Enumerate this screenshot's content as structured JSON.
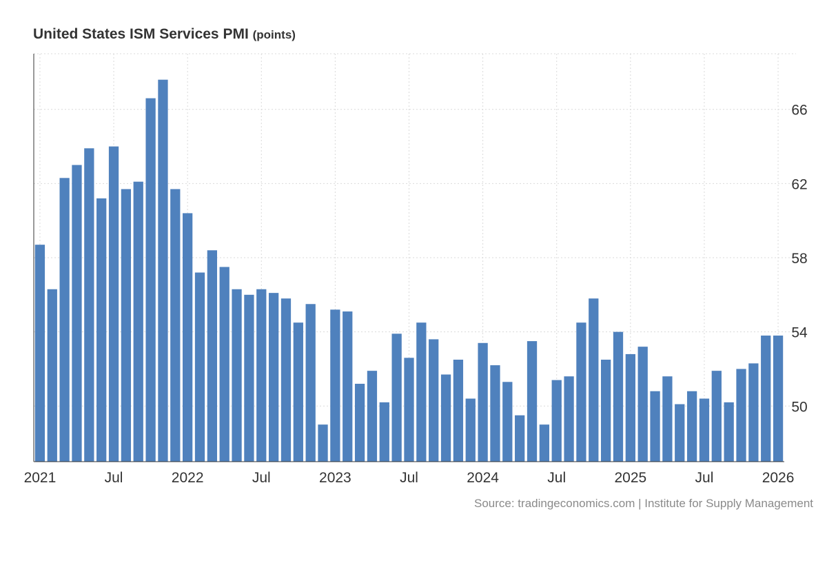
{
  "title": "United States ISM Services PMI",
  "unit": "(points)",
  "source": "Source: tradingeconomics.com | Institute for Supply Management",
  "colors": {
    "bar": "#4f81bd",
    "grid": "#d9d9d9",
    "axis": "#333333",
    "text": "#333333",
    "source": "#8a8a8a"
  },
  "chart_data": {
    "type": "bar",
    "title": "United States ISM Services PMI",
    "ylabel": "(points)",
    "ylim": [
      47,
      69
    ],
    "yticks": [
      50,
      54,
      58,
      62,
      66
    ],
    "y_axis_position": "right",
    "grid": true,
    "x_tick_labels": [
      {
        "index": 0,
        "label": "2021"
      },
      {
        "index": 6,
        "label": "Jul"
      },
      {
        "index": 12,
        "label": "2022"
      },
      {
        "index": 18,
        "label": "Jul"
      },
      {
        "index": 24,
        "label": "2023"
      },
      {
        "index": 30,
        "label": "Jul"
      },
      {
        "index": 36,
        "label": "2024"
      },
      {
        "index": 42,
        "label": "Jul"
      },
      {
        "index": 48,
        "label": "2025"
      },
      {
        "index": 54,
        "label": "Jul"
      },
      {
        "index": 60,
        "label": "2026"
      }
    ],
    "categories": [
      "Jan 2021",
      "Feb 2021",
      "Mar 2021",
      "Apr 2021",
      "May 2021",
      "Jun 2021",
      "Jul 2021",
      "Aug 2021",
      "Sep 2021",
      "Oct 2021",
      "Nov 2021",
      "Dec 2021",
      "Jan 2022",
      "Feb 2022",
      "Mar 2022",
      "Apr 2022",
      "May 2022",
      "Jun 2022",
      "Jul 2022",
      "Aug 2022",
      "Sep 2022",
      "Oct 2022",
      "Nov 2022",
      "Dec 2022",
      "Jan 2023",
      "Feb 2023",
      "Mar 2023",
      "Apr 2023",
      "May 2023",
      "Jun 2023",
      "Jul 2023",
      "Aug 2023",
      "Sep 2023",
      "Oct 2023",
      "Nov 2023",
      "Dec 2023",
      "Jan 2024",
      "Feb 2024",
      "Mar 2024",
      "Apr 2024",
      "May 2024",
      "Jun 2024",
      "Jul 2024",
      "Aug 2024",
      "Sep 2024",
      "Oct 2024",
      "Nov 2024",
      "Dec 2024",
      "Jan 2025",
      "Feb 2025",
      "Mar 2025",
      "Apr 2025",
      "May 2025",
      "Jun 2025",
      "Jul 2025",
      "Aug 2025",
      "Sep 2025",
      "Oct 2025",
      "Nov 2025",
      "Dec 2025",
      "Jan 2026"
    ],
    "values": [
      58.7,
      56.3,
      62.3,
      63.0,
      63.9,
      61.2,
      64.0,
      61.7,
      62.1,
      66.6,
      67.6,
      61.7,
      60.4,
      57.2,
      58.4,
      57.5,
      56.3,
      56.0,
      56.3,
      56.1,
      55.8,
      54.5,
      55.5,
      49.0,
      55.2,
      55.1,
      51.2,
      51.9,
      50.2,
      53.9,
      52.6,
      54.5,
      53.6,
      51.7,
      52.5,
      50.4,
      53.4,
      52.2,
      51.3,
      49.5,
      53.5,
      49.0,
      51.4,
      51.6,
      54.5,
      55.8,
      52.5,
      54.0,
      52.8,
      53.2,
      50.8,
      51.6,
      50.1,
      50.8,
      50.4,
      51.9,
      50.2,
      52.0,
      52.3,
      53.8,
      53.8
    ]
  }
}
